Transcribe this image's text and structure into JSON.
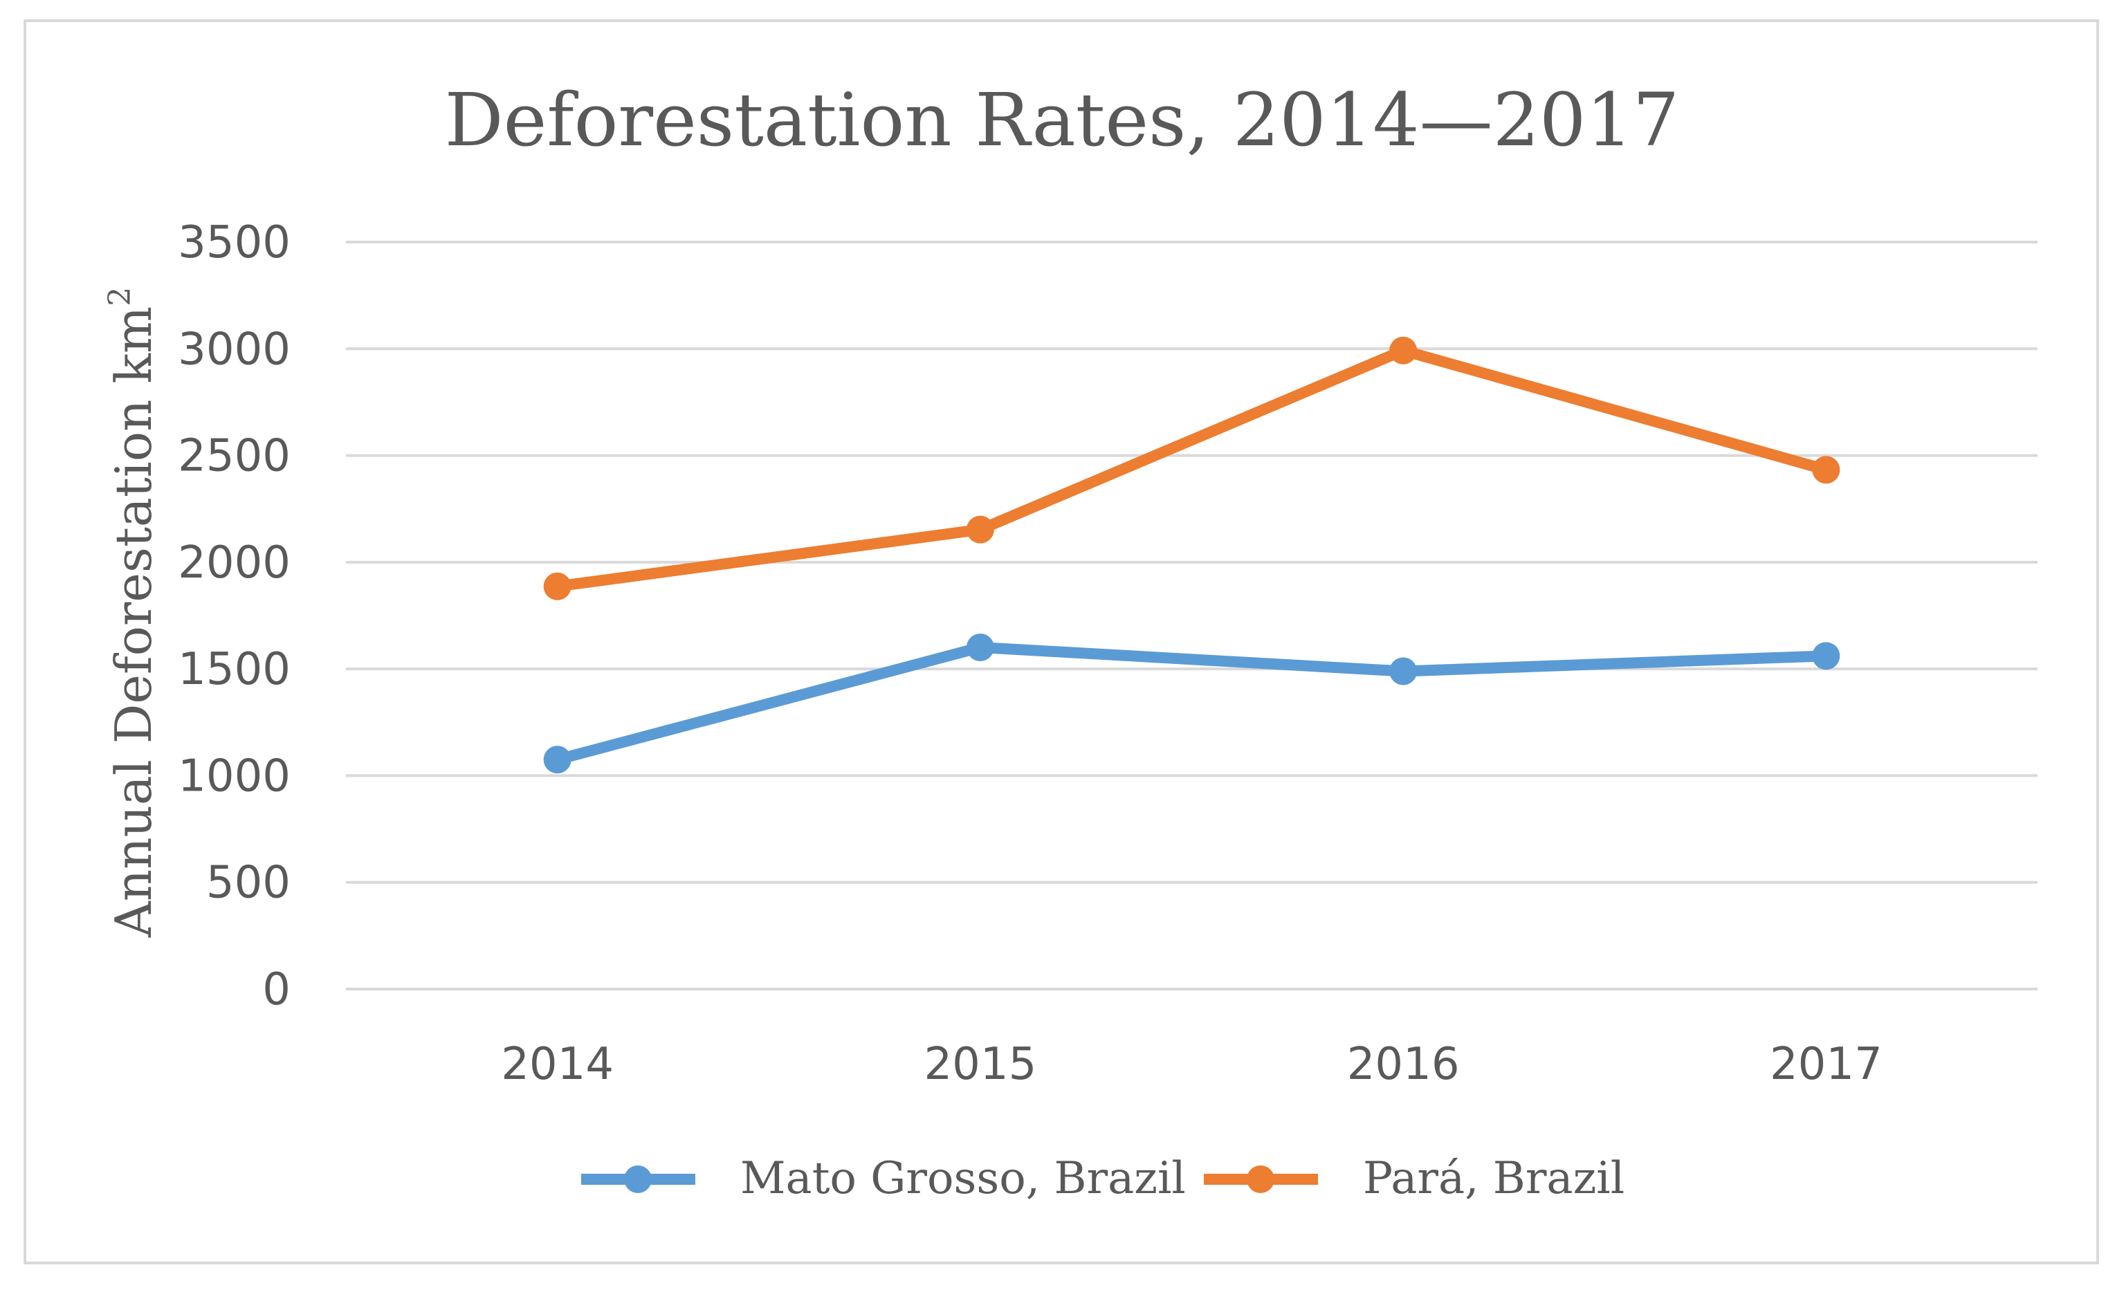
{
  "chart_data": {
    "type": "line",
    "title": "Deforestation Rates, 2014—2017",
    "xlabel": "",
    "ylabel": "Annual Deforestation km",
    "ylabel_superscript": "2",
    "categories": [
      "2014",
      "2015",
      "2016",
      "2017"
    ],
    "ylim": [
      0,
      3500
    ],
    "yticks": [
      0,
      500,
      1000,
      1500,
      2000,
      2500,
      3000,
      3500
    ],
    "grid": true,
    "legend_position": "bottom",
    "series": [
      {
        "name": "Mato Grosso, Brazil",
        "color": "#5b9bd5",
        "values": [
          1075,
          1601,
          1489,
          1561
        ]
      },
      {
        "name": "Pará, Brazil",
        "color": "#ed7d31",
        "values": [
          1887,
          2153,
          2992,
          2433
        ]
      }
    ]
  }
}
